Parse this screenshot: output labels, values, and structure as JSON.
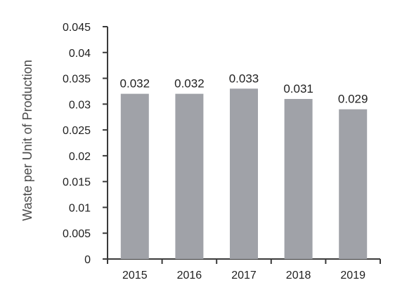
{
  "chart_data": {
    "type": "bar",
    "categories": [
      "2015",
      "2016",
      "2017",
      "2018",
      "2019"
    ],
    "values": [
      0.032,
      0.032,
      0.033,
      0.031,
      0.029
    ],
    "data_labels": [
      "0.032",
      "0.032",
      "0.033",
      "0.031",
      "0.029"
    ],
    "title": "",
    "xlabel": "",
    "ylabel": "Waste per Unit of Production",
    "ylim": [
      0,
      0.045
    ],
    "yticks": [
      "0",
      "0.005",
      "0.01",
      "0.015",
      "0.02",
      "0.025",
      "0.03",
      "0.035",
      "0.04",
      "0.045"
    ],
    "grid": false,
    "legend": "none",
    "colors": {
      "bar": "#a0a2a8",
      "axis": "#3a3a3a",
      "text": "#1f1f1f"
    }
  }
}
